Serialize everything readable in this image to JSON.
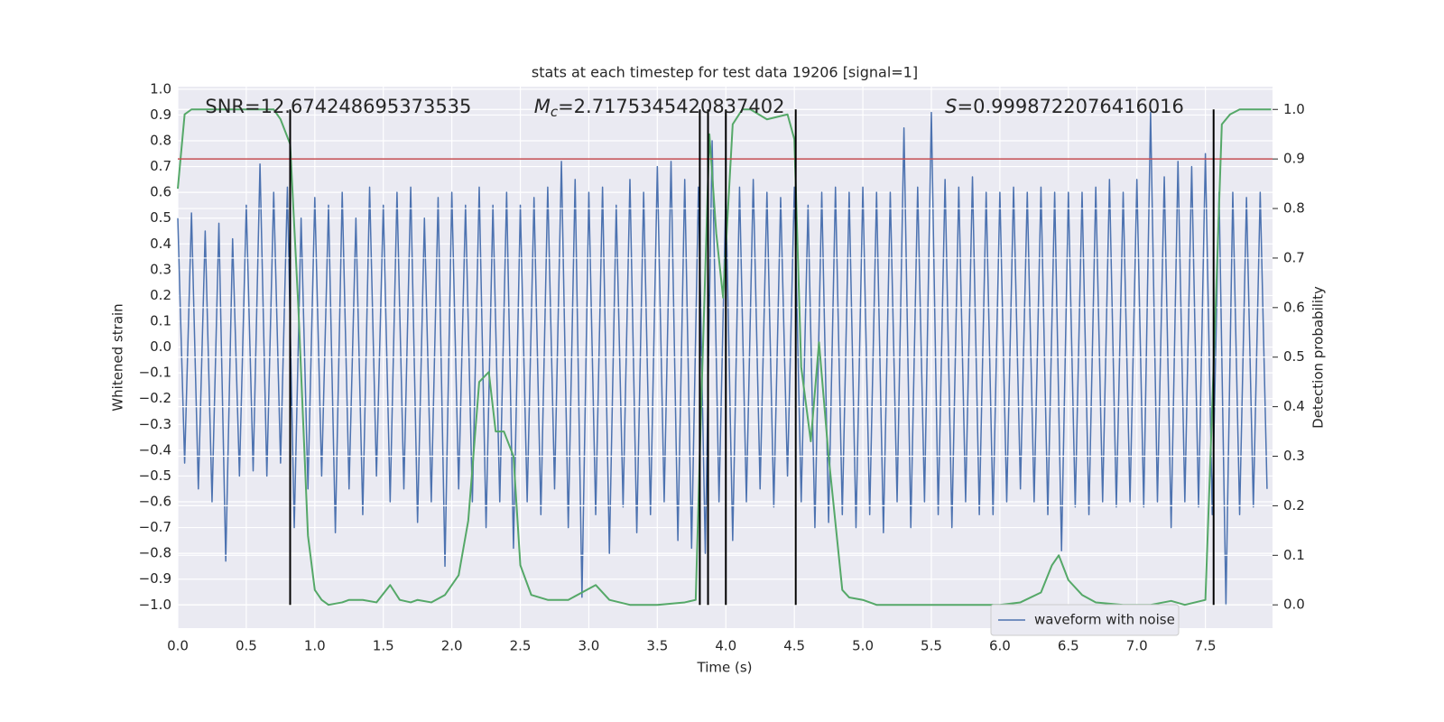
{
  "chart_data": {
    "type": "line",
    "title": "stats at each timestep for test data 19206 [signal=1]",
    "xlabel": "Time (s)",
    "ylabel": "Whitened strain",
    "y2label": "Detection probability",
    "annotations": [
      {
        "text": "SNR=12.674248695373535",
        "x": 0.2,
        "y": 0.93
      },
      {
        "symbol": "M",
        "subscript": "c",
        "text": "=2.7175345420837402",
        "x": 2.6,
        "y": 0.93
      },
      {
        "symbol": "S",
        "text": "=0.9998722076416016",
        "x": 5.6,
        "y": 0.93
      }
    ],
    "xlim": [
      0,
      7.99
    ],
    "ylim": [
      -1.09,
      1.01
    ],
    "y2lim": [
      -0.047,
      1.046
    ],
    "grid": true,
    "legend": "lower right",
    "xticks": [
      {
        "value": 0,
        "label": "0.0"
      },
      {
        "value": 0.5,
        "label": "0.5"
      },
      {
        "value": 1,
        "label": "1.0"
      },
      {
        "value": 1.5,
        "label": "1.5"
      },
      {
        "value": 2,
        "label": "2.0"
      },
      {
        "value": 2.5,
        "label": "2.5"
      },
      {
        "value": 3,
        "label": "3.0"
      },
      {
        "value": 3.5,
        "label": "3.5"
      },
      {
        "value": 4,
        "label": "4.0"
      },
      {
        "value": 4.5,
        "label": "4.5"
      },
      {
        "value": 5,
        "label": "5.0"
      },
      {
        "value": 5.5,
        "label": "5.5"
      },
      {
        "value": 6,
        "label": "6.0"
      },
      {
        "value": 6.5,
        "label": "6.5"
      },
      {
        "value": 7,
        "label": "7.0"
      },
      {
        "value": 7.5,
        "label": "7.5"
      }
    ],
    "yticks": [
      {
        "value": -1,
        "label": "−1.0"
      },
      {
        "value": -0.9,
        "label": "−0.9"
      },
      {
        "value": -0.8,
        "label": "−0.8"
      },
      {
        "value": -0.7,
        "label": "−0.7"
      },
      {
        "value": -0.6,
        "label": "−0.6"
      },
      {
        "value": -0.5,
        "label": "−0.5"
      },
      {
        "value": -0.4,
        "label": "−0.4"
      },
      {
        "value": -0.3,
        "label": "−0.3"
      },
      {
        "value": -0.2,
        "label": "−0.2"
      },
      {
        "value": -0.1,
        "label": "−0.1"
      },
      {
        "value": 0,
        "label": "0.0"
      },
      {
        "value": 0.1,
        "label": "0.1"
      },
      {
        "value": 0.2,
        "label": "0.2"
      },
      {
        "value": 0.3,
        "label": "0.3"
      },
      {
        "value": 0.4,
        "label": "0.4"
      },
      {
        "value": 0.5,
        "label": "0.5"
      },
      {
        "value": 0.6,
        "label": "0.6"
      },
      {
        "value": 0.7,
        "label": "0.7"
      },
      {
        "value": 0.8,
        "label": "0.8"
      },
      {
        "value": 0.9,
        "label": "0.9"
      },
      {
        "value": 1,
        "label": "1.0"
      }
    ],
    "y2ticks": [
      {
        "value": 0,
        "label": "0.0"
      },
      {
        "value": 0.1,
        "label": "0.1"
      },
      {
        "value": 0.2,
        "label": "0.2"
      },
      {
        "value": 0.3,
        "label": "0.3"
      },
      {
        "value": 0.4,
        "label": "0.4"
      },
      {
        "value": 0.5,
        "label": "0.5"
      },
      {
        "value": 0.6,
        "label": "0.6"
      },
      {
        "value": 0.7,
        "label": "0.7"
      },
      {
        "value": 0.8,
        "label": "0.8"
      },
      {
        "value": 0.9,
        "label": "0.9"
      },
      {
        "value": 1,
        "label": "1.0"
      }
    ],
    "series": [
      {
        "name": "waveform with noise",
        "color": "#4c72b0",
        "x": [
          0,
          0.05,
          0.1,
          0.15,
          0.2,
          0.25,
          0.3,
          0.35,
          0.4,
          0.45,
          0.5,
          0.55,
          0.6,
          0.65,
          0.7,
          0.75,
          0.8,
          0.85,
          0.9,
          0.95,
          1,
          1.05,
          1.1,
          1.15,
          1.2,
          1.25,
          1.3,
          1.35,
          1.4,
          1.45,
          1.5,
          1.55,
          1.6,
          1.65,
          1.7,
          1.75,
          1.8,
          1.85,
          1.9,
          1.95,
          2,
          2.05,
          2.1,
          2.15,
          2.2,
          2.25,
          2.3,
          2.35,
          2.4,
          2.45,
          2.5,
          2.55,
          2.6,
          2.65,
          2.7,
          2.75,
          2.8,
          2.85,
          2.9,
          2.95,
          3,
          3.05,
          3.1,
          3.15,
          3.2,
          3.25,
          3.3,
          3.35,
          3.4,
          3.45,
          3.5,
          3.55,
          3.6,
          3.65,
          3.7,
          3.75,
          3.8,
          3.85,
          3.9,
          3.95,
          4,
          4.05,
          4.1,
          4.15,
          4.2,
          4.25,
          4.3,
          4.35,
          4.4,
          4.45,
          4.5,
          4.55,
          4.6,
          4.65,
          4.7,
          4.75,
          4.8,
          4.85,
          4.9,
          4.95,
          5,
          5.05,
          5.1,
          5.15,
          5.2,
          5.25,
          5.3,
          5.35,
          5.4,
          5.45,
          5.5,
          5.55,
          5.6,
          5.65,
          5.7,
          5.75,
          5.8,
          5.85,
          5.9,
          5.95,
          6,
          6.05,
          6.1,
          6.15,
          6.2,
          6.25,
          6.3,
          6.35,
          6.4,
          6.45,
          6.5,
          6.55,
          6.6,
          6.65,
          6.7,
          6.75,
          6.8,
          6.85,
          6.9,
          6.95,
          7,
          7.05,
          7.1,
          7.15,
          7.2,
          7.25,
          7.3,
          7.35,
          7.4,
          7.45,
          7.5,
          7.55,
          7.6,
          7.65,
          7.7,
          7.75,
          7.8,
          7.85,
          7.9,
          7.95
        ],
        "values": [
          0.5,
          -0.45,
          0.52,
          -0.55,
          0.45,
          -0.6,
          0.48,
          -0.83,
          0.42,
          -0.5,
          0.55,
          -0.48,
          0.71,
          -0.5,
          0.6,
          -0.45,
          0.62,
          -0.7,
          0.5,
          -0.55,
          0.58,
          -0.5,
          0.55,
          -0.72,
          0.6,
          -0.55,
          0.5,
          -0.65,
          0.62,
          -0.5,
          0.55,
          -0.6,
          0.6,
          -0.55,
          0.62,
          -0.68,
          0.5,
          -0.6,
          0.58,
          -0.85,
          0.6,
          -0.55,
          0.55,
          -0.6,
          0.62,
          -0.7,
          0.55,
          -0.6,
          0.6,
          -0.78,
          0.55,
          -0.6,
          0.58,
          -0.65,
          0.62,
          -0.55,
          0.72,
          -0.7,
          0.65,
          -0.97,
          0.6,
          -0.65,
          0.62,
          -0.8,
          0.55,
          -0.62,
          0.65,
          -0.72,
          0.6,
          -0.65,
          0.7,
          -0.6,
          0.72,
          -0.75,
          0.65,
          -0.78,
          0.62,
          -0.8,
          0.8,
          -0.6,
          0.6,
          -0.75,
          0.62,
          -0.6,
          0.65,
          -0.55,
          0.6,
          -0.62,
          0.58,
          -0.5,
          0.62,
          -0.6,
          0.55,
          -0.7,
          0.6,
          -0.68,
          0.62,
          -0.65,
          0.6,
          -0.7,
          0.62,
          -0.65,
          0.6,
          -0.72,
          0.6,
          -0.6,
          0.85,
          -0.7,
          0.62,
          -0.6,
          0.91,
          -0.65,
          0.65,
          -0.7,
          0.62,
          -0.6,
          0.66,
          -0.65,
          0.6,
          -0.65,
          0.6,
          -0.6,
          0.62,
          -0.55,
          0.6,
          -0.6,
          0.62,
          -0.65,
          0.6,
          -0.79,
          0.6,
          -0.62,
          0.6,
          -0.65,
          0.62,
          -0.6,
          0.65,
          -0.62,
          0.6,
          -0.6,
          0.65,
          -0.62,
          0.91,
          -0.6,
          0.66,
          -0.7,
          0.72,
          -0.6,
          0.7,
          -0.62,
          0.75,
          -0.65,
          0.6,
          -1.0,
          0.6,
          -0.65,
          0.58,
          -0.62,
          0.6,
          -0.55
        ]
      },
      {
        "color": "#55a868",
        "axis": "y2",
        "x": [
          0,
          0.05,
          0.1,
          0.3,
          0.7,
          0.75,
          0.82,
          0.88,
          0.95,
          1,
          1.05,
          1.1,
          1.2,
          1.25,
          1.35,
          1.45,
          1.55,
          1.62,
          1.7,
          1.75,
          1.85,
          1.95,
          2.05,
          2.12,
          2.2,
          2.27,
          2.32,
          2.38,
          2.45,
          2.5,
          2.58,
          2.7,
          2.85,
          2.95,
          3.05,
          3.15,
          3.3,
          3.5,
          3.7,
          3.78,
          3.82,
          3.88,
          3.93,
          3.98,
          4.05,
          4.12,
          4.18,
          4.3,
          4.45,
          4.5,
          4.55,
          4.62,
          4.68,
          4.75,
          4.85,
          4.9,
          5,
          5.1,
          5.5,
          6,
          6.15,
          6.3,
          6.38,
          6.43,
          6.5,
          6.6,
          6.7,
          6.9,
          7.1,
          7.25,
          7.35,
          7.5,
          7.55,
          7.62,
          7.68,
          7.75,
          7.98
        ],
        "values": [
          0.84,
          0.99,
          1.0,
          1.0,
          1.0,
          0.98,
          0.93,
          0.6,
          0.14,
          0.03,
          0.01,
          0.0,
          0.005,
          0.01,
          0.01,
          0.005,
          0.04,
          0.01,
          0.005,
          0.01,
          0.005,
          0.02,
          0.06,
          0.17,
          0.45,
          0.47,
          0.35,
          0.35,
          0.3,
          0.08,
          0.02,
          0.01,
          0.01,
          0.025,
          0.04,
          0.01,
          0.0,
          0.0,
          0.005,
          0.01,
          0.4,
          0.95,
          0.75,
          0.62,
          0.97,
          1.0,
          1.0,
          0.98,
          0.99,
          0.94,
          0.48,
          0.33,
          0.53,
          0.3,
          0.03,
          0.015,
          0.01,
          0.0,
          0.0,
          0.0,
          0.005,
          0.025,
          0.08,
          0.1,
          0.05,
          0.02,
          0.005,
          0.0,
          0.0,
          0.008,
          0.0,
          0.01,
          0.4,
          0.97,
          0.99,
          1.0,
          1.0
        ]
      }
    ],
    "threshold": {
      "value": 0.9,
      "axis": "y2",
      "color": "#c44e52"
    },
    "vlines": {
      "x": [
        0.82,
        3.81,
        3.87,
        4.0,
        4.51,
        7.56
      ],
      "ymin": 0,
      "ymax": 1,
      "axis": "y2",
      "color": "#000000"
    }
  }
}
